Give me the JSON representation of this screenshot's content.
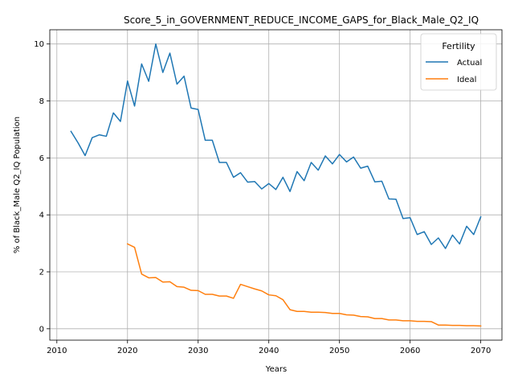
{
  "chart_data": {
    "type": "line",
    "title": "Score_5_in_GOVERNMENT_REDUCE_INCOME_GAPS_for_Black_Male_Q2_IQ",
    "xlabel": "Years",
    "ylabel": "% of Black_Male Q2_IQ Population",
    "xlim": [
      2009,
      2073
    ],
    "ylim": [
      -0.4,
      10.5
    ],
    "xticks": [
      "2010",
      "2020",
      "2030",
      "2040",
      "2050",
      "2060",
      "2070"
    ],
    "yticks": [
      "0",
      "2",
      "4",
      "6",
      "8",
      "10"
    ],
    "grid": true,
    "legend": {
      "title": "Fertility",
      "placement": "top-right"
    },
    "series": [
      {
        "name": "Actual",
        "color": "#1f77b4",
        "x": [
          2012,
          2013,
          2014,
          2015,
          2016,
          2017,
          2018,
          2019,
          2020,
          2021,
          2022,
          2023,
          2024,
          2025,
          2026,
          2027,
          2028,
          2029,
          2030,
          2031,
          2032,
          2033,
          2034,
          2035,
          2036,
          2037,
          2038,
          2039,
          2040,
          2041,
          2042,
          2043,
          2044,
          2045,
          2046,
          2047,
          2048,
          2049,
          2050,
          2051,
          2052,
          2053,
          2054,
          2055,
          2056,
          2057,
          2058,
          2059,
          2060,
          2061,
          2062,
          2063,
          2064,
          2065,
          2066,
          2067,
          2068,
          2069,
          2070
        ],
        "values": [
          6.93,
          6.53,
          6.08,
          6.71,
          6.81,
          6.76,
          7.58,
          7.28,
          8.7,
          7.82,
          9.3,
          8.69,
          10.0,
          9.0,
          9.68,
          8.59,
          8.87,
          7.75,
          7.7,
          6.62,
          6.62,
          5.84,
          5.84,
          5.32,
          5.48,
          5.15,
          5.17,
          4.91,
          5.1,
          4.89,
          5.32,
          4.82,
          5.52,
          5.2,
          5.84,
          5.57,
          6.07,
          5.79,
          6.12,
          5.86,
          6.03,
          5.64,
          5.71,
          5.16,
          5.18,
          4.56,
          4.55,
          3.87,
          3.9,
          3.31,
          3.41,
          2.96,
          3.19,
          2.82,
          3.29,
          2.98,
          3.6,
          3.31,
          3.93
        ]
      },
      {
        "name": "Ideal",
        "color": "#ff7f0e",
        "x": [
          2020,
          2021,
          2022,
          2023,
          2024,
          2025,
          2026,
          2027,
          2028,
          2029,
          2030,
          2031,
          2032,
          2033,
          2034,
          2035,
          2036,
          2037,
          2038,
          2039,
          2040,
          2041,
          2042,
          2043,
          2044,
          2045,
          2046,
          2047,
          2048,
          2049,
          2050,
          2051,
          2052,
          2053,
          2054,
          2055,
          2056,
          2057,
          2058,
          2059,
          2060,
          2061,
          2062,
          2063,
          2064,
          2065,
          2066,
          2067,
          2068,
          2069,
          2070
        ],
        "values": [
          2.98,
          2.86,
          1.92,
          1.79,
          1.8,
          1.64,
          1.65,
          1.48,
          1.46,
          1.35,
          1.34,
          1.21,
          1.21,
          1.15,
          1.15,
          1.07,
          1.56,
          1.48,
          1.4,
          1.33,
          1.19,
          1.16,
          1.02,
          0.67,
          0.61,
          0.61,
          0.58,
          0.58,
          0.57,
          0.54,
          0.54,
          0.49,
          0.48,
          0.43,
          0.42,
          0.36,
          0.36,
          0.31,
          0.31,
          0.28,
          0.28,
          0.26,
          0.26,
          0.25,
          0.13,
          0.13,
          0.12,
          0.12,
          0.11,
          0.11,
          0.1
        ]
      }
    ]
  }
}
